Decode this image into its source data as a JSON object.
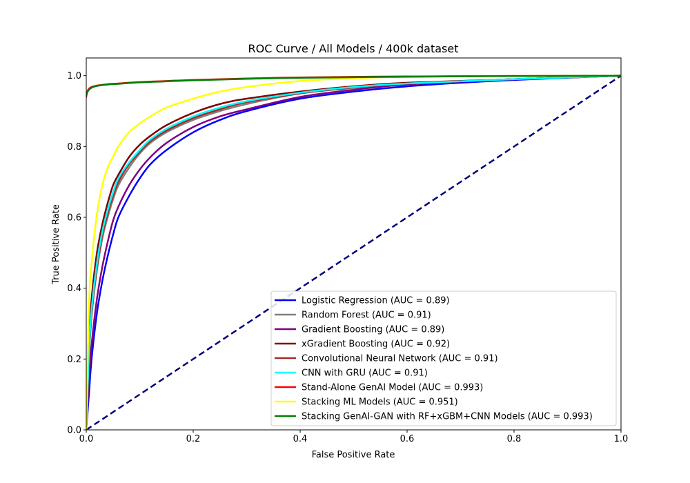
{
  "chart_data": {
    "type": "line",
    "title": "ROC Curve / All Models / 400k dataset",
    "xlabel": "False Positive Rate",
    "ylabel": "True Positive Rate",
    "xlim": [
      0,
      1.0
    ],
    "ylim": [
      0,
      1.05
    ],
    "xticks": [
      0.0,
      0.2,
      0.4,
      0.6,
      0.8,
      1.0
    ],
    "yticks": [
      0.0,
      0.2,
      0.4,
      0.6,
      0.8,
      1.0
    ],
    "grid": false,
    "legend_position": "lower-right",
    "diagonal": {
      "x": [
        0,
        1
      ],
      "y": [
        0,
        1
      ],
      "color": "#000080",
      "style": "dashed"
    },
    "series": [
      {
        "name": "Logistic Regression (AUC = 0.89)",
        "color": "#0000ff",
        "x": [
          0,
          0.005,
          0.01,
          0.02,
          0.03,
          0.04,
          0.05,
          0.06,
          0.08,
          0.1,
          0.12,
          0.15,
          0.2,
          0.25,
          0.3,
          0.4,
          0.5,
          0.6,
          0.7,
          0.8,
          1.0
        ],
        "y": [
          0,
          0.1,
          0.2,
          0.33,
          0.42,
          0.49,
          0.55,
          0.6,
          0.66,
          0.71,
          0.75,
          0.79,
          0.84,
          0.875,
          0.9,
          0.935,
          0.955,
          0.97,
          0.98,
          0.988,
          1.0
        ]
      },
      {
        "name": "Random Forest (AUC = 0.91)",
        "color": "#808080",
        "x": [
          0,
          0.005,
          0.01,
          0.02,
          0.03,
          0.04,
          0.05,
          0.06,
          0.08,
          0.1,
          0.12,
          0.15,
          0.2,
          0.25,
          0.3,
          0.4,
          0.5,
          0.6,
          0.8,
          1.0
        ],
        "y": [
          0,
          0.2,
          0.32,
          0.45,
          0.54,
          0.6,
          0.65,
          0.69,
          0.74,
          0.78,
          0.81,
          0.84,
          0.875,
          0.9,
          0.92,
          0.95,
          0.965,
          0.977,
          0.99,
          1.0
        ]
      },
      {
        "name": "Gradient Boosting (AUC = 0.89)",
        "color": "#800080",
        "x": [
          0,
          0.005,
          0.01,
          0.02,
          0.03,
          0.04,
          0.05,
          0.06,
          0.08,
          0.1,
          0.12,
          0.15,
          0.2,
          0.25,
          0.3,
          0.4,
          0.5,
          0.6,
          0.8,
          1.0
        ],
        "y": [
          0,
          0.14,
          0.24,
          0.37,
          0.46,
          0.53,
          0.59,
          0.63,
          0.69,
          0.735,
          0.77,
          0.81,
          0.855,
          0.885,
          0.905,
          0.94,
          0.96,
          0.975,
          0.99,
          1.0
        ]
      },
      {
        "name": "xGradient Boosting (AUC = 0.92)",
        "color": "#800000",
        "x": [
          0,
          0.005,
          0.01,
          0.02,
          0.03,
          0.04,
          0.05,
          0.06,
          0.08,
          0.1,
          0.12,
          0.15,
          0.2,
          0.25,
          0.3,
          0.4,
          0.5,
          0.6,
          0.8,
          1.0
        ],
        "y": [
          0,
          0.25,
          0.37,
          0.5,
          0.58,
          0.64,
          0.69,
          0.72,
          0.77,
          0.805,
          0.83,
          0.86,
          0.895,
          0.92,
          0.935,
          0.955,
          0.97,
          0.98,
          0.99,
          1.0
        ]
      },
      {
        "name": "Convolutional Neural Network (AUC = 0.91)",
        "color": "#a52a2a",
        "x": [
          0,
          0.005,
          0.01,
          0.02,
          0.03,
          0.04,
          0.05,
          0.06,
          0.08,
          0.1,
          0.12,
          0.15,
          0.2,
          0.25,
          0.3,
          0.4,
          0.5,
          0.6,
          0.8,
          1.0
        ],
        "y": [
          0,
          0.21,
          0.33,
          0.46,
          0.55,
          0.61,
          0.66,
          0.7,
          0.75,
          0.785,
          0.815,
          0.845,
          0.88,
          0.905,
          0.925,
          0.95,
          0.967,
          0.978,
          0.99,
          1.0
        ]
      },
      {
        "name": "CNN with GRU (AUC = 0.91)",
        "color": "#00ffff",
        "x": [
          0,
          0.005,
          0.01,
          0.02,
          0.03,
          0.04,
          0.05,
          0.06,
          0.08,
          0.1,
          0.12,
          0.15,
          0.2,
          0.25,
          0.3,
          0.4,
          0.5,
          0.6,
          0.8,
          1.0
        ],
        "y": [
          0,
          0.22,
          0.34,
          0.47,
          0.56,
          0.62,
          0.67,
          0.71,
          0.755,
          0.79,
          0.82,
          0.85,
          0.885,
          0.91,
          0.928,
          0.952,
          0.968,
          0.978,
          0.99,
          1.0
        ]
      },
      {
        "name": "Stand-Alone GenAI Model (AUC = 0.993)",
        "color": "#ff0000",
        "x": [
          0,
          0.002,
          0.005,
          0.01,
          0.02,
          0.04,
          0.06,
          0.1,
          0.15,
          0.2,
          0.3,
          0.4,
          0.6,
          0.8,
          1.0
        ],
        "y": [
          0.94,
          0.955,
          0.963,
          0.968,
          0.972,
          0.976,
          0.978,
          0.982,
          0.985,
          0.988,
          0.992,
          0.995,
          0.998,
          0.999,
          1.0
        ]
      },
      {
        "name": "Stacking ML Models (AUC = 0.951)",
        "color": "#ffff00",
        "x": [
          0,
          0.005,
          0.01,
          0.02,
          0.03,
          0.04,
          0.05,
          0.06,
          0.08,
          0.1,
          0.12,
          0.15,
          0.2,
          0.25,
          0.3,
          0.4,
          0.5,
          0.6,
          0.8,
          1.0
        ],
        "y": [
          0,
          0.35,
          0.47,
          0.61,
          0.69,
          0.74,
          0.77,
          0.8,
          0.84,
          0.865,
          0.885,
          0.91,
          0.935,
          0.955,
          0.968,
          0.985,
          0.993,
          0.997,
          0.999,
          1.0
        ]
      },
      {
        "name": "Stacking GenAI-GAN with RF+xGBM+CNN Models (AUC = 0.993)",
        "color": "#008000",
        "x": [
          0,
          0.002,
          0.005,
          0.01,
          0.02,
          0.04,
          0.06,
          0.1,
          0.15,
          0.2,
          0.3,
          0.4,
          0.6,
          0.8,
          1.0
        ],
        "y": [
          0.945,
          0.953,
          0.96,
          0.966,
          0.971,
          0.975,
          0.977,
          0.981,
          0.984,
          0.987,
          0.991,
          0.994,
          0.997,
          0.999,
          1.0
        ]
      }
    ]
  }
}
